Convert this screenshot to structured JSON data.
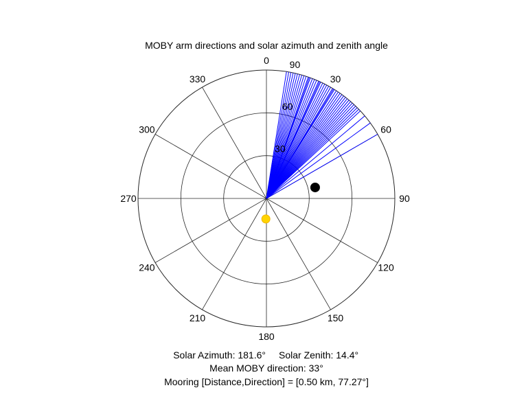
{
  "chart_data": {
    "type": "polar",
    "title": "MOBY arm directions and solar azimuth and zenith angle",
    "theta_direction": "clockwise",
    "theta_zero_location": "top",
    "theta_ticks": [
      {
        "angle": 0,
        "label": "0"
      },
      {
        "angle": 30,
        "label": "30"
      },
      {
        "angle": 60,
        "label": "60"
      },
      {
        "angle": 90,
        "label": "90"
      },
      {
        "angle": 120,
        "label": "120"
      },
      {
        "angle": 150,
        "label": "150"
      },
      {
        "angle": 180,
        "label": "180"
      },
      {
        "angle": 210,
        "label": "210"
      },
      {
        "angle": 240,
        "label": "240"
      },
      {
        "angle": 270,
        "label": "270"
      },
      {
        "angle": 300,
        "label": "300"
      },
      {
        "angle": 330,
        "label": "330"
      }
    ],
    "r_ticks": [
      {
        "value": 30,
        "label": "30"
      },
      {
        "value": 60,
        "label": "60"
      },
      {
        "value": 90,
        "label": "90"
      }
    ],
    "r_lim": [
      0,
      90
    ],
    "r_tick_label_angle": 10,
    "series": [
      {
        "kind": "radial_lines",
        "color": "#0000ff",
        "r": 90,
        "angles": [
          9,
          10,
          11,
          12,
          13,
          14,
          15,
          16,
          17,
          18,
          19,
          19.5,
          20,
          21,
          22,
          23,
          24,
          24.5,
          25,
          26,
          27,
          28,
          29,
          30,
          31,
          31.5,
          32,
          33,
          34,
          35,
          36,
          37,
          38,
          39,
          40,
          41,
          42,
          43,
          44,
          45,
          46,
          47,
          50,
          54,
          60
        ]
      },
      {
        "kind": "point",
        "color": "#000000",
        "theta": 77.27,
        "r": 35
      },
      {
        "kind": "point",
        "color": "#ffd400",
        "theta": 181.6,
        "r": 14.4
      }
    ]
  },
  "footer": {
    "line1a": "Solar Azimuth: 181.6°",
    "line1b": "Solar Zenith: 14.4°",
    "line2": "Mean MOBY direction: 33°",
    "line3": "Mooring [Distance,Direction] = [0.50 km, 77.27°]"
  }
}
